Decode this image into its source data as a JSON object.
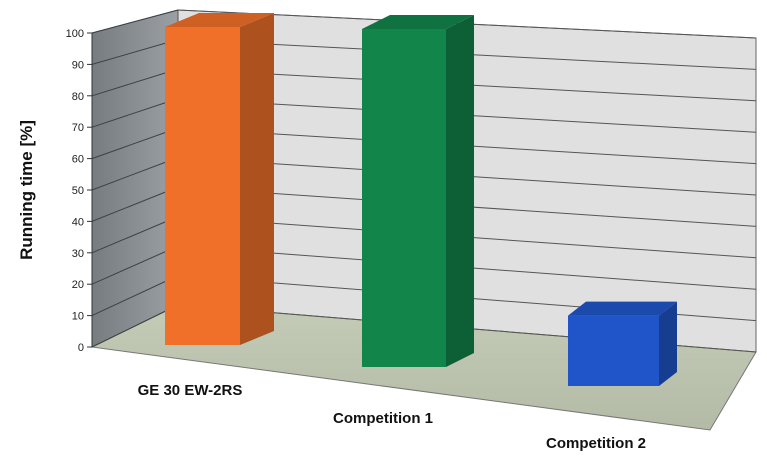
{
  "chart_data": {
    "type": "bar",
    "title": "",
    "xlabel": "",
    "ylabel": "Running time [%]",
    "ylim": [
      0,
      100
    ],
    "yticks": [
      0,
      10,
      20,
      30,
      40,
      50,
      60,
      70,
      80,
      90,
      100
    ],
    "grid": true,
    "style": "3d-column",
    "categories": [
      "GE 30 EW-2RS",
      "Competition 1",
      "Competition 2"
    ],
    "values": [
      100,
      100,
      20
    ],
    "colors": [
      "#f0702a",
      "#12854a",
      "#1f55c8"
    ]
  }
}
